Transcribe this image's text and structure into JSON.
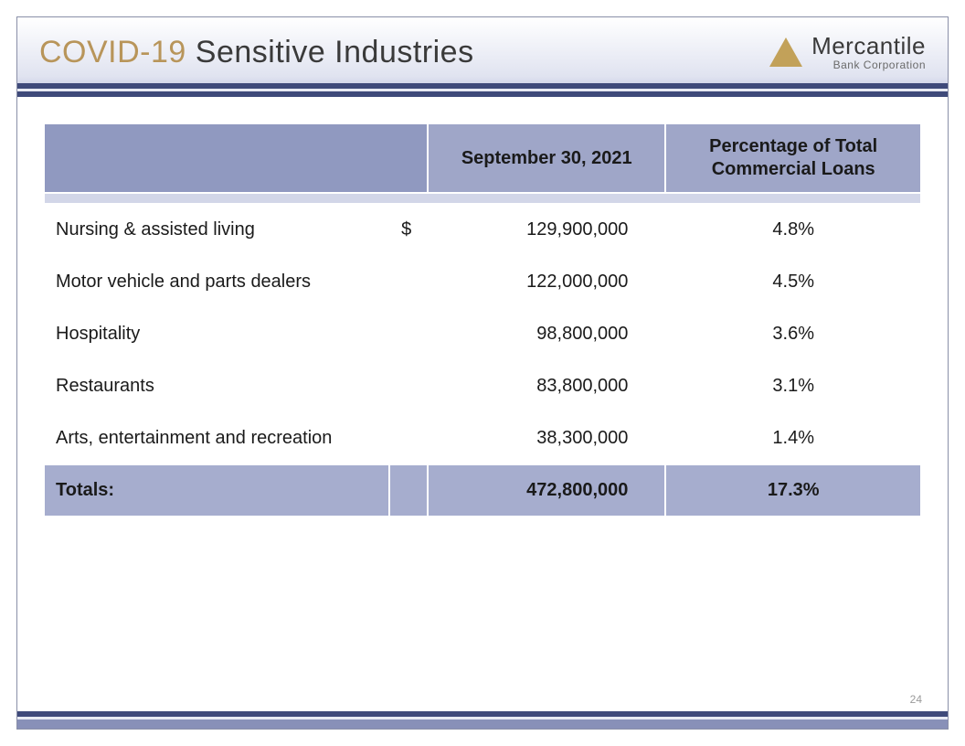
{
  "slide": {
    "title_covid": "COVID-19",
    "title_rest": " Sensitive Industries",
    "page_number": "24"
  },
  "logo": {
    "main": "Mercantile",
    "sub": "Bank Corporation",
    "triangle_color": "#c2a159",
    "text_color": "#3a3a3a"
  },
  "stripes": {
    "dark": "#3f4a7a",
    "light": "#e8eaf3",
    "mid": "#8890b8"
  },
  "table": {
    "header_bg": "#9fa6c8",
    "header_blank_bg": "#9099c0",
    "spacer_bg": "#d2d6e8",
    "row_bg": "#ffffff",
    "totals_bg": "#a6adce",
    "columns": {
      "blank": "",
      "date": "September 30, 2021",
      "pct": "Percentage of Total Commercial Loans"
    },
    "currency_symbol": "$",
    "rows": [
      {
        "label": "Nursing & assisted living",
        "amount": "129,900,000",
        "pct": "4.8%",
        "show_currency": true
      },
      {
        "label": "Motor vehicle and parts dealers",
        "amount": "122,000,000",
        "pct": "4.5%",
        "show_currency": false
      },
      {
        "label": "Hospitality",
        "amount": "98,800,000",
        "pct": "3.6%",
        "show_currency": false
      },
      {
        "label": "Restaurants",
        "amount": "83,800,000",
        "pct": "3.1%",
        "show_currency": false
      },
      {
        "label": "Arts, entertainment and recreation",
        "amount": "38,300,000",
        "pct": "1.4%",
        "show_currency": false
      }
    ],
    "totals": {
      "label": "Totals:",
      "amount": "472,800,000",
      "pct": "17.3%"
    }
  }
}
